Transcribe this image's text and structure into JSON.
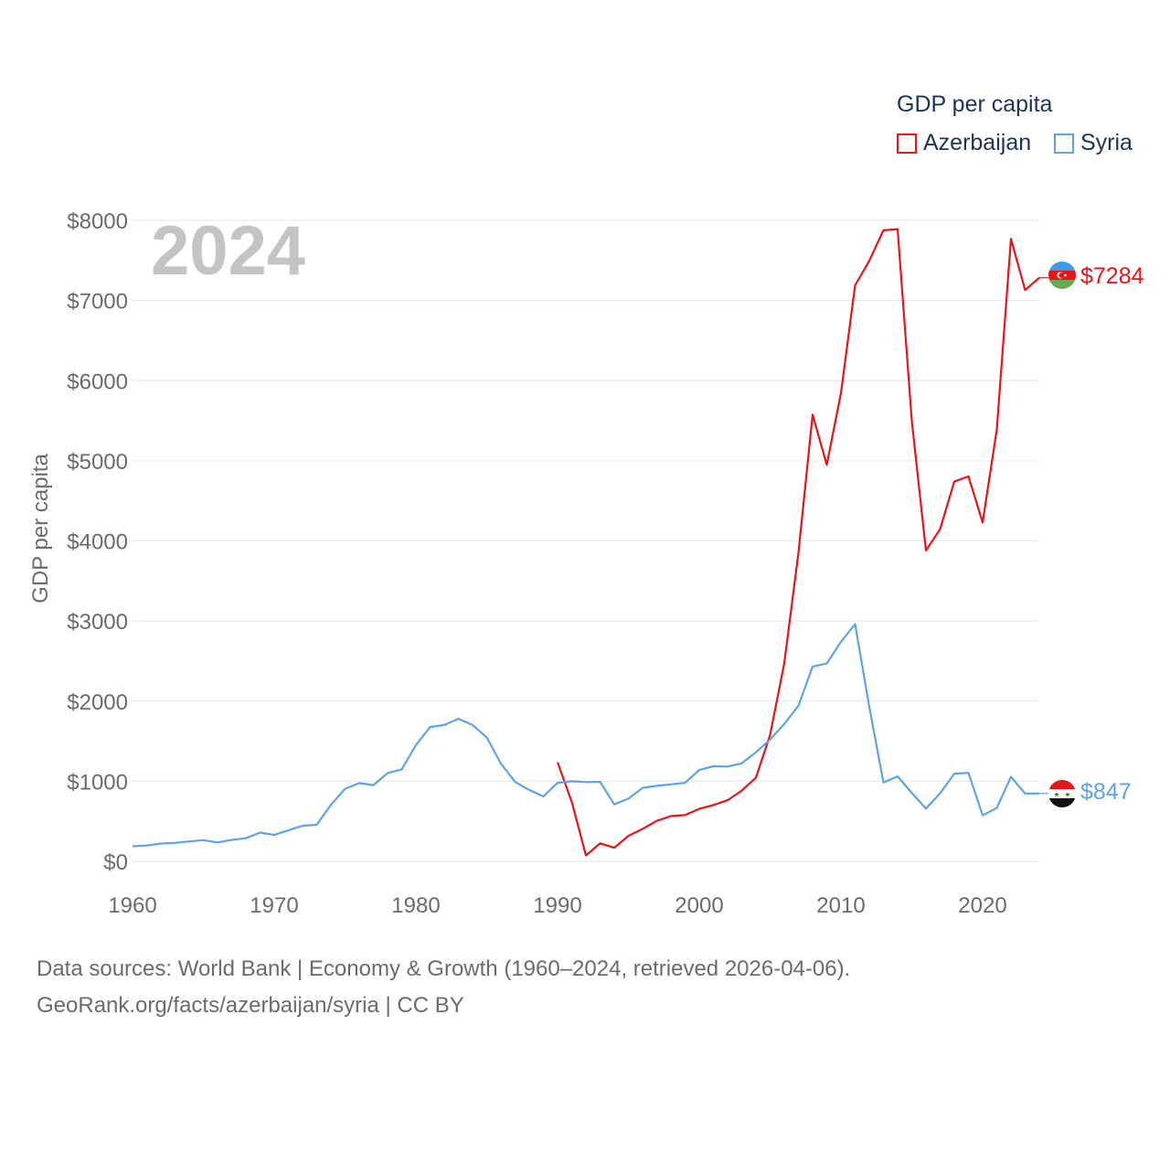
{
  "legend": {
    "title": "GDP per capita"
  },
  "footer": {
    "line1": "Data sources: World Bank | Economy & Growth (1960–2024, retrieved 2026-04-06).",
    "line2": "GeoRank.org/facts/azerbaijan/syria | CC BY"
  },
  "chart_data": {
    "type": "line",
    "title": "",
    "year_label": "2024",
    "xlabel": "",
    "ylabel": "GDP per capita",
    "xlim": [
      1960,
      2024
    ],
    "ylim": [
      0,
      8000
    ],
    "x_ticks": [
      1960,
      1970,
      1980,
      1990,
      2000,
      2010,
      2020
    ],
    "y_ticks": [
      0,
      1000,
      2000,
      3000,
      4000,
      5000,
      6000,
      7000,
      8000
    ],
    "y_tick_labels": [
      "$0",
      "$1000",
      "$2000",
      "$3000",
      "$4000",
      "$5000",
      "$6000",
      "$7000",
      "$8000"
    ],
    "series": [
      {
        "name": "Azerbaijan",
        "color": "#e8141a",
        "end_label": "$7284",
        "flag_icon": "azerbaijan-flag-icon",
        "x": [
          1990,
          1991,
          1992,
          1993,
          1994,
          1995,
          1996,
          1997,
          1998,
          1999,
          2000,
          2001,
          2002,
          2003,
          2004,
          2005,
          2006,
          2007,
          2008,
          2009,
          2010,
          2011,
          2012,
          2013,
          2014,
          2015,
          2016,
          2017,
          2018,
          2019,
          2020,
          2021,
          2022,
          2023,
          2024
        ],
        "values": [
          1237,
          743,
          74,
          225,
          170,
          318,
          405,
          505,
          565,
          578,
          655,
          703,
          763,
          883,
          1045,
          1578,
          2473,
          3851,
          5575,
          4950,
          5843,
          7190,
          7496,
          7876,
          7891,
          5500,
          3880,
          4147,
          4739,
          4805,
          4229,
          5388,
          7770,
          7130,
          7284
        ]
      },
      {
        "name": "Syria",
        "color": "#5ea3e3",
        "end_label": "$847",
        "flag_icon": "syria-flag-icon",
        "x": [
          1960,
          1961,
          1962,
          1963,
          1964,
          1965,
          1966,
          1967,
          1968,
          1969,
          1970,
          1971,
          1972,
          1973,
          1974,
          1975,
          1976,
          1977,
          1978,
          1979,
          1980,
          1981,
          1982,
          1983,
          1984,
          1985,
          1986,
          1987,
          1988,
          1989,
          1990,
          1991,
          1992,
          1993,
          1994,
          1995,
          1996,
          1997,
          1998,
          1999,
          2000,
          2001,
          2002,
          2003,
          2004,
          2005,
          2006,
          2007,
          2008,
          2009,
          2010,
          2011,
          2012,
          2013,
          2014,
          2015,
          2016,
          2017,
          2018,
          2019,
          2020,
          2021,
          2022,
          2023,
          2024
        ],
        "values": [
          188,
          197,
          222,
          231,
          249,
          265,
          236,
          268,
          289,
          360,
          330,
          387,
          444,
          456,
          705,
          905,
          977,
          952,
          1100,
          1148,
          1450,
          1677,
          1701,
          1779,
          1703,
          1548,
          1221,
          992,
          891,
          810,
          980,
          1000,
          990,
          993,
          711,
          783,
          917,
          943,
          961,
          980,
          1140,
          1188,
          1184,
          1223,
          1362,
          1520,
          1714,
          1942,
          2430,
          2470,
          2740,
          2960,
          1930,
          985,
          1060,
          855,
          660,
          850,
          1095,
          1105,
          575,
          665,
          1055,
          847,
          847
        ]
      }
    ]
  }
}
